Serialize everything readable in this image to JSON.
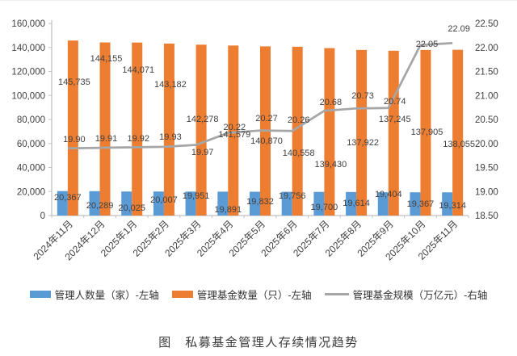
{
  "figure": {
    "caption": "图　私募基金管理人存续情况趋势"
  },
  "chart_data": {
    "type": "combo",
    "title": "",
    "categories": [
      "2024年11月",
      "2024年12月",
      "2025年1月",
      "2025年2月",
      "2025年3月",
      "2025年4月",
      "2025年5月",
      "2025年6月",
      "2025年7月",
      "2025年8月",
      "2025年9月",
      "2025年10月",
      "2025年11月"
    ],
    "series": [
      {
        "name": "管理人数量（家）-左轴",
        "type": "bar",
        "axis": "left",
        "color": "#5B9BD5",
        "values": [
          20367,
          20289,
          20025,
          20007,
          19951,
          19891,
          19832,
          19756,
          19700,
          19614,
          19404,
          19367,
          19314
        ],
        "labels": [
          "20,367",
          "20,289",
          "20,025",
          "20,007",
          "19,951",
          "19,891",
          "19,832",
          "19,756",
          "19,700",
          "19,614",
          "19,404",
          "19,367",
          "19,314"
        ]
      },
      {
        "name": "管理基金数量（只）-左轴",
        "type": "bar",
        "axis": "left",
        "color": "#ED7D31",
        "values": [
          145735,
          144155,
          144071,
          143182,
          142278,
          141579,
          140870,
          140558,
          139430,
          137922,
          137245,
          137905,
          138055
        ],
        "labels": [
          "145,735",
          "144,155",
          "144,071",
          "143,182",
          "142,278",
          "141,579",
          "140,870",
          "140,558",
          "139,430",
          "137,922",
          "137,245",
          "137,905",
          "138,055"
        ]
      },
      {
        "name": "管理基金规模（万亿元）-右轴",
        "type": "line",
        "axis": "right",
        "color": "#A6A6A6",
        "values": [
          19.9,
          19.91,
          19.92,
          19.93,
          19.97,
          20.22,
          20.27,
          20.26,
          20.68,
          20.73,
          20.74,
          22.05,
          22.09
        ],
        "labels": [
          "19.90",
          "19.91",
          "19.92",
          "19.93",
          "19.97",
          "20.22",
          "20.27",
          "20.26",
          "20.68",
          "20.73",
          "20.74",
          "22.05",
          "22.09"
        ]
      }
    ],
    "left_axis": {
      "min": 0,
      "max": 160000,
      "step": 20000,
      "ticks": [
        "0",
        "20,000",
        "40,000",
        "60,000",
        "80,000",
        "100,000",
        "120,000",
        "140,000",
        "160,000"
      ]
    },
    "right_axis": {
      "min": 18.5,
      "max": 22.5,
      "step": 0.5,
      "ticks": [
        "18.50",
        "19.00",
        "19.50",
        "20.00",
        "20.50",
        "21.00",
        "21.50",
        "22.00",
        "22.50"
      ]
    },
    "grid": false,
    "legend_position": "bottom",
    "layout": {
      "label_text_color": "#404040",
      "axis_text_color": "#404040",
      "axis_line_color": "#BFBFBF",
      "label_y": {
        "managers": [
          243,
          253,
          256,
          246,
          241,
          258,
          248,
          241,
          255,
          250,
          239,
          251,
          253
        ],
        "funds": [
          100,
          71,
          85,
          103,
          146,
          165,
          173,
          188,
          202,
          175,
          146,
          162,
          177
        ],
        "scale": [
          171,
          170,
          170,
          168,
          187,
          156,
          145,
          147,
          125,
          117,
          124,
          53,
          34
        ]
      }
    }
  }
}
